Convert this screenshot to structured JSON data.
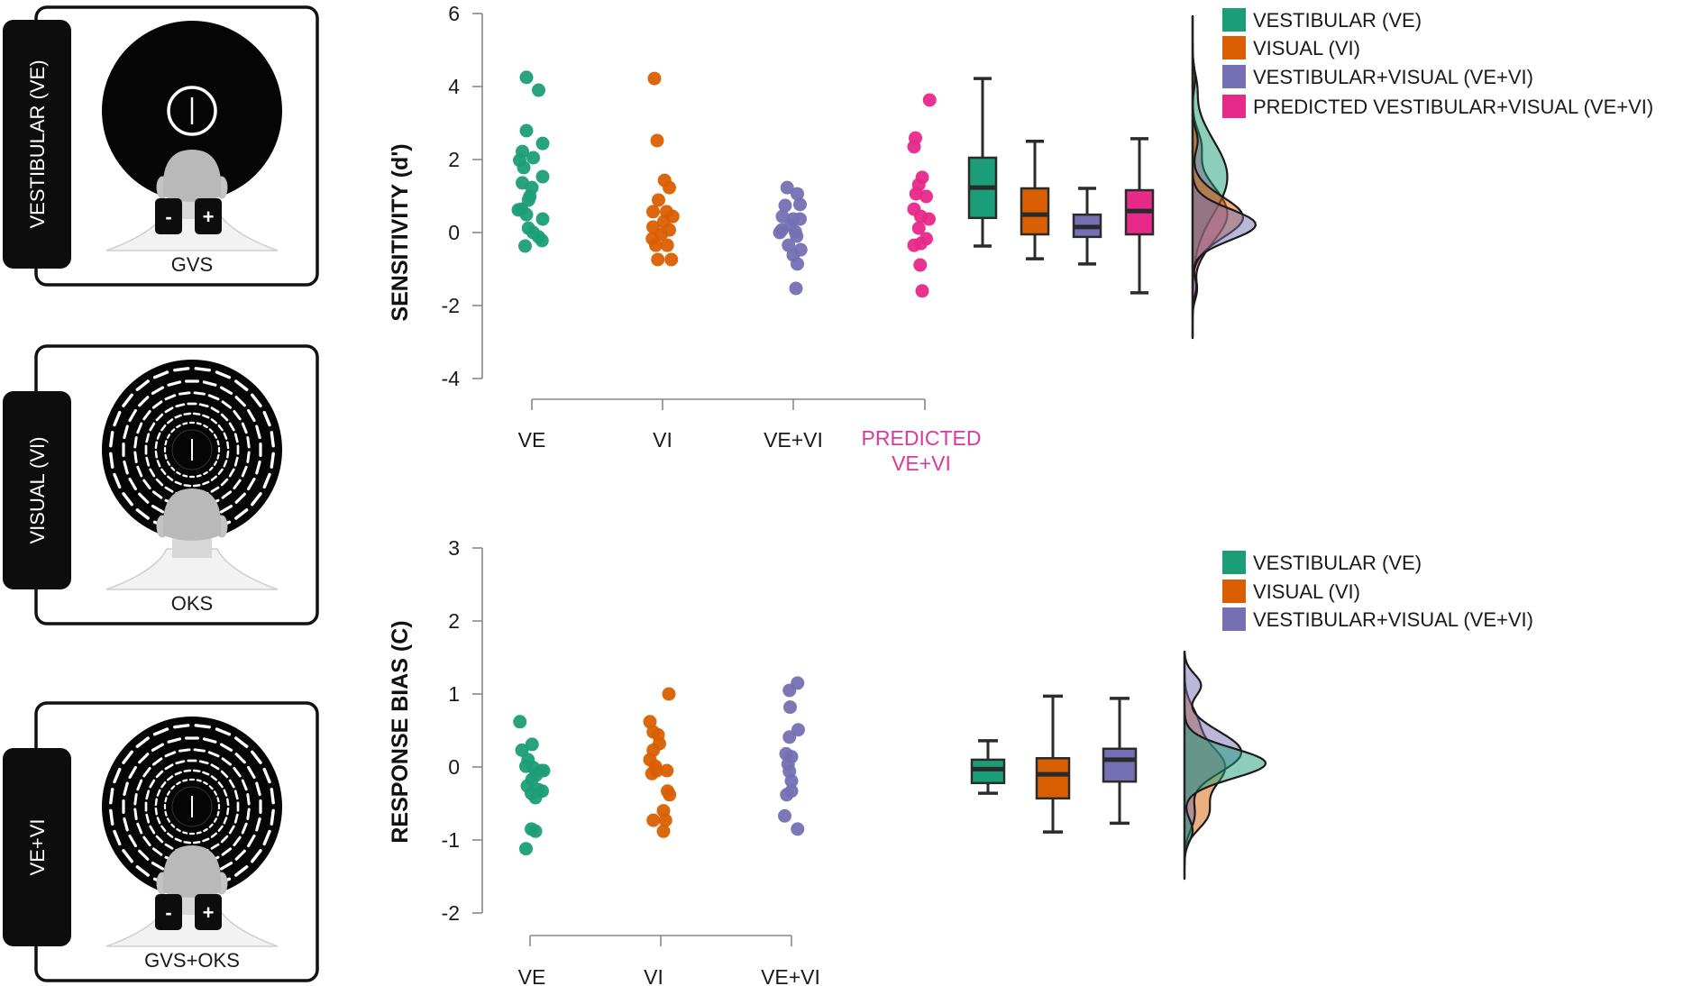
{
  "panels": [
    {
      "id": "ve",
      "side_label": "VESTIBULAR (VE)",
      "caption": "GVS",
      "stimulus": "static-fixation",
      "electrodes": true,
      "electrode_labels": [
        "-",
        "+"
      ]
    },
    {
      "id": "vi",
      "side_label": "VISUAL (VI)",
      "caption": "OKS",
      "stimulus": "optokinetic-tunnel",
      "electrodes": false,
      "electrode_labels": []
    },
    {
      "id": "vevi",
      "side_label": "VE+VI",
      "caption": "GVS+OKS",
      "stimulus": "optokinetic-tunnel",
      "electrodes": true,
      "electrode_labels": [
        "-",
        "+"
      ]
    }
  ],
  "colors": {
    "VE": "#1b9e77",
    "VI": "#d95f02",
    "VEVI": "#7570b3",
    "PRED": "#e7298a",
    "pred_label": "#d63ba0",
    "axis": "#888888",
    "box_stroke": "#2b2b2b"
  },
  "chart_data": [
    {
      "type": "scatter",
      "variant": "raincloud (jittered points + boxplot + density)",
      "title": "",
      "ylabel": "SENSITIVITY (d')",
      "xlabel": "",
      "ylim": [
        -4,
        6
      ],
      "yticks": [
        6,
        4,
        2,
        0,
        -2,
        -4
      ],
      "grid": false,
      "categories": [
        {
          "key": "VE",
          "label": "VE",
          "label_color": "#1a1a1a"
        },
        {
          "key": "VI",
          "label": "VI",
          "label_color": "#1a1a1a"
        },
        {
          "key": "VEVI",
          "label": "VE+VI",
          "label_color": "#1a1a1a"
        },
        {
          "key": "PRED",
          "label": "PREDICTED\nVE+VI",
          "label_lines": [
            "PREDICTED",
            "VE+VI"
          ],
          "label_color": "#d63ba0"
        }
      ],
      "legend": {
        "placement": "top-right",
        "entries": [
          {
            "key": "VE",
            "label": "VESTIBULAR (VE)"
          },
          {
            "key": "VI",
            "label": "VISUAL (VI)"
          },
          {
            "key": "VEVI",
            "label": "VESTIBULAR+VISUAL (VE+VI)"
          },
          {
            "key": "PRED",
            "label": "PREDICTED VESTIBULAR+VISUAL (VE+VI)"
          }
        ]
      },
      "series": [
        {
          "key": "VE",
          "name": "VESTIBULAR (VE)",
          "jitter": [
            -0.08,
            0.1,
            -0.08,
            0.16,
            -0.14,
            0.02,
            -0.18,
            -0.12,
            0.16,
            -0.14,
            0.0,
            -0.03,
            -0.05,
            -0.15,
            -0.08,
            0.16,
            -0.05,
            0.02,
            0.1,
            0.15,
            -0.1,
            -0.2
          ],
          "values": [
            4.25,
            3.9,
            2.79,
            2.44,
            2.22,
            2.05,
            1.98,
            1.78,
            1.53,
            1.36,
            1.23,
            0.99,
            0.89,
            0.64,
            0.49,
            0.37,
            0.12,
            0.0,
            -0.12,
            -0.22,
            -0.37,
            0.62
          ]
        },
        {
          "key": "VI",
          "name": "VISUAL (VI)",
          "jitter": [
            -0.12,
            -0.08,
            0.03,
            0.1,
            -0.06,
            -0.14,
            0.06,
            0.15,
            -0.14,
            0.02,
            0.1,
            -0.02,
            -0.15,
            -0.1,
            0.07,
            -0.07,
            0.13
          ],
          "values": [
            4.22,
            2.52,
            1.43,
            1.23,
            0.89,
            0.57,
            0.57,
            0.44,
            0.15,
            0.3,
            0.07,
            -0.05,
            -0.17,
            -0.35,
            -0.35,
            -0.74,
            -0.74
          ]
        },
        {
          "key": "VEVI",
          "name": "VESTIBULAR+VISUAL (VE+VI)",
          "jitter": [
            -0.09,
            0.06,
            0.1,
            -0.12,
            -0.16,
            0.0,
            0.1,
            -0.17,
            -0.04,
            0.03,
            -0.2,
            0.05,
            -0.07,
            0.11,
            0.0,
            0.06,
            0.04
          ],
          "values": [
            1.23,
            1.06,
            0.77,
            0.74,
            0.44,
            0.37,
            0.37,
            0.07,
            0.2,
            0.02,
            0.0,
            -0.1,
            -0.35,
            -0.47,
            -0.62,
            -0.86,
            -1.53
          ]
        },
        {
          "key": "PRED",
          "name": "PREDICTED VESTIBULAR+VISUAL (VE+VI)",
          "jitter": [
            0.07,
            -0.14,
            -0.16,
            -0.04,
            -0.09,
            -0.13,
            0.02,
            -0.16,
            -0.06,
            0.06,
            -0.09,
            0.02,
            -0.16,
            -0.06,
            -0.07,
            -0.04
          ],
          "values": [
            3.63,
            2.59,
            2.35,
            1.51,
            1.31,
            1.06,
            0.99,
            0.64,
            0.44,
            0.37,
            0.12,
            -0.17,
            -0.35,
            -0.3,
            -0.89,
            -1.6
          ]
        }
      ],
      "boxplots": [
        {
          "key": "VE",
          "min": -0.37,
          "q1": 0.4,
          "median": 1.23,
          "q3": 2.05,
          "max": 4.22
        },
        {
          "key": "VI",
          "min": -0.72,
          "q1": -0.05,
          "median": 0.49,
          "q3": 1.21,
          "max": 2.5
        },
        {
          "key": "VEVI",
          "min": -0.86,
          "q1": -0.12,
          "median": 0.15,
          "q3": 0.49,
          "max": 1.21
        },
        {
          "key": "PRED",
          "min": -1.65,
          "q1": -0.05,
          "median": 0.59,
          "q3": 1.16,
          "max": 2.57
        }
      ],
      "densities": {
        "range": [
          -2.9,
          5.9
        ],
        "curves": [
          {
            "key": "PRED",
            "peaks": [
              {
                "mu": 0.5,
                "sigma": 0.75,
                "h": 0.55
              },
              {
                "mu": 2.4,
                "sigma": 0.4,
                "h": 0.12
              },
              {
                "mu": -1.6,
                "sigma": 0.25,
                "h": 0.06
              }
            ]
          },
          {
            "key": "VE",
            "peaks": [
              {
                "mu": 1.5,
                "sigma": 1.0,
                "h": 0.55
              },
              {
                "mu": 4.0,
                "sigma": 0.35,
                "h": 0.05
              }
            ]
          },
          {
            "key": "VI",
            "peaks": [
              {
                "mu": 0.4,
                "sigma": 0.55,
                "h": 0.8
              },
              {
                "mu": 2.5,
                "sigma": 0.3,
                "h": 0.08
              },
              {
                "mu": 4.2,
                "sigma": 0.3,
                "h": 0.04
              }
            ]
          },
          {
            "key": "VEVI",
            "peaks": [
              {
                "mu": 0.2,
                "sigma": 0.42,
                "h": 1.0
              },
              {
                "mu": -1.5,
                "sigma": 0.25,
                "h": 0.06
              }
            ]
          }
        ]
      }
    },
    {
      "type": "scatter",
      "variant": "raincloud (jittered points + boxplot + density)",
      "title": "",
      "ylabel": "RESPONSE BIAS (C)",
      "xlabel": "",
      "ylim": [
        -2,
        3
      ],
      "yticks": [
        3,
        2,
        1,
        0,
        -1,
        -2
      ],
      "grid": false,
      "categories": [
        {
          "key": "VE",
          "label": "VE",
          "label_color": "#1a1a1a"
        },
        {
          "key": "VI",
          "label": "VI",
          "label_color": "#1a1a1a"
        },
        {
          "key": "VEVI",
          "label": "VE+VI",
          "label_color": "#1a1a1a"
        }
      ],
      "legend": {
        "placement": "top-right",
        "entries": [
          {
            "key": "VE",
            "label": "VESTIBULAR (VE)"
          },
          {
            "key": "VI",
            "label": "VISUAL (VI)"
          },
          {
            "key": "VEVI",
            "label": "VESTIBULAR+VISUAL (VE+VI)"
          }
        ]
      },
      "series": [
        {
          "key": "VE",
          "name": "VESTIBULAR (VE)",
          "jitter": [
            -0.15,
            0.03,
            -0.12,
            -0.03,
            -0.06,
            0.05,
            0.17,
            0.2,
            0.09,
            0.03,
            -0.04,
            0.12,
            0.18,
            0.08,
            0.02,
            0.02,
            0.08,
            -0.06
          ],
          "values": [
            0.62,
            0.31,
            0.23,
            0.1,
            0.01,
            -0.01,
            -0.05,
            -0.05,
            -0.11,
            -0.17,
            -0.26,
            -0.31,
            -0.33,
            -0.42,
            -0.36,
            -0.85,
            -0.88,
            -1.12
          ]
        },
        {
          "key": "VI",
          "name": "VISUAL (VI)",
          "jitter": [
            -0.16,
            -0.11,
            -0.04,
            -0.02,
            -0.11,
            -0.16,
            -0.08,
            -0.06,
            -0.13,
            0.09,
            0.1,
            0.13,
            0.04,
            0.07,
            -0.11,
            0.04,
            0.12
          ],
          "values": [
            0.62,
            0.48,
            0.44,
            0.32,
            0.23,
            0.1,
            0.01,
            -0.05,
            -0.09,
            -0.05,
            -0.33,
            -0.38,
            -0.6,
            -0.73,
            -0.73,
            -0.88,
            1.0
          ]
        },
        {
          "key": "VEVI",
          "name": "VESTIBULAR+VISUAL (VE+VI)",
          "jitter": [
            -0.03,
            0.09,
            -0.02,
            0.1,
            -0.03,
            -0.08,
            0.0,
            -0.05,
            -0.03,
            0.0,
            -0.07,
            0.0,
            -0.1,
            0.09
          ],
          "values": [
            1.05,
            1.15,
            0.82,
            0.51,
            0.41,
            0.18,
            0.14,
            0.04,
            -0.06,
            -0.19,
            -0.38,
            -0.33,
            -0.67,
            -0.85
          ]
        }
      ],
      "boxplots": [
        {
          "key": "VE",
          "min": -0.36,
          "q1": -0.22,
          "median": -0.03,
          "q3": 0.1,
          "max": 0.36
        },
        {
          "key": "VI",
          "min": -0.89,
          "q1": -0.43,
          "median": -0.1,
          "q3": 0.12,
          "max": 0.97
        },
        {
          "key": "VEVI",
          "min": -0.77,
          "q1": -0.2,
          "median": 0.1,
          "q3": 0.25,
          "max": 0.94
        }
      ],
      "densities": {
        "range": [
          -1.55,
          1.5
        ],
        "curves": [
          {
            "key": "VI",
            "peaks": [
              {
                "mu": -0.05,
                "sigma": 0.3,
                "h": 0.5
              },
              {
                "mu": -0.7,
                "sigma": 0.2,
                "h": 0.25
              },
              {
                "mu": 0.6,
                "sigma": 0.2,
                "h": 0.12
              }
            ]
          },
          {
            "key": "VEVI",
            "peaks": [
              {
                "mu": 0.15,
                "sigma": 0.28,
                "h": 0.7
              },
              {
                "mu": 1.05,
                "sigma": 0.15,
                "h": 0.2
              },
              {
                "mu": -0.7,
                "sigma": 0.2,
                "h": 0.12
              }
            ]
          },
          {
            "key": "VE",
            "peaks": [
              {
                "mu": 0.0,
                "sigma": 0.2,
                "h": 1.0
              },
              {
                "mu": -0.9,
                "sigma": 0.15,
                "h": 0.1
              }
            ]
          }
        ]
      }
    }
  ]
}
